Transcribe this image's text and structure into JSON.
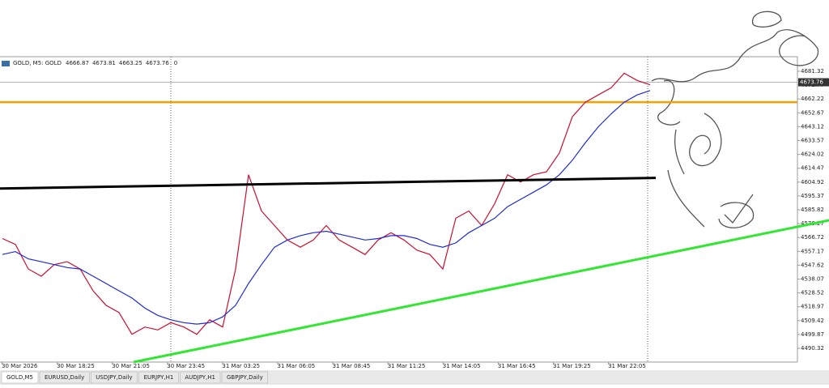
{
  "chart_data": {
    "type": "line",
    "header": {
      "label": "GOLD, M5:  GOLD",
      "ohlc": [
        4666.87,
        4673.81,
        4663.25,
        4673.76
      ],
      "spread": 0
    },
    "ylim": [
      4480.83,
      4691.37
    ],
    "yticks": [
      4681.32,
      4671.77,
      4662.22,
      4652.67,
      4643.12,
      4633.57,
      4624.02,
      4614.47,
      4604.92,
      4595.37,
      4585.82,
      4576.27,
      4566.72,
      4557.17,
      4547.62,
      4538.07,
      4528.52,
      4518.97,
      4509.42,
      4499.87,
      4490.32
    ],
    "xtick_labels": [
      "30 Mar 2026",
      "30 Mar 18:25",
      "30 Mar 21:05",
      "30 Mar 23:45",
      "31 Mar 03:25",
      "31 Mar 06:05",
      "31 Mar 08:45",
      "31 Mar 11:25",
      "31 Mar 14:05",
      "31 Mar 16:45",
      "31 Mar 19:25",
      "31 Mar 22:05"
    ],
    "series": [
      {
        "color": "#c8102e",
        "values": [
          4566,
          4562,
          4545,
          4540,
          4548,
          4550,
          4545,
          4530,
          4520,
          4515,
          4500,
          4505,
          4503,
          4508,
          4505,
          4500,
          4510,
          4505,
          4545,
          4610,
          4585,
          4575,
          4565,
          4560,
          4565,
          4575,
          4565,
          4560,
          4555,
          4565,
          4570,
          4565,
          4558,
          4555,
          4545,
          4580,
          4585,
          4575,
          4590,
          4610,
          4605,
          4610,
          4612,
          4625,
          4650,
          4660,
          4665,
          4670,
          4680,
          4675,
          4672
        ]
      },
      {
        "color": "#1f2bd6",
        "values": [
          4555,
          4557,
          4552,
          4550,
          4548,
          4546,
          4545,
          4540,
          4535,
          4530,
          4525,
          4518,
          4513,
          4510,
          4508,
          4507,
          4508,
          4512,
          4520,
          4535,
          4548,
          4560,
          4565,
          4568,
          4570,
          4571,
          4569,
          4567,
          4565,
          4566,
          4568,
          4568,
          4566,
          4562,
          4560,
          4563,
          4570,
          4575,
          4580,
          4588,
          4593,
          4598,
          4603,
          4610,
          4620,
          4632,
          4643,
          4652,
          4660,
          4665,
          4668
        ]
      }
    ],
    "current_price": 4673.76,
    "levels": [
      {
        "value": 4660,
        "color": "#f5a000"
      }
    ],
    "trendlines": [
      {
        "values": [
          4600.5,
          4607.8
        ],
        "color": "#000000"
      },
      {
        "values": [
          4480.83,
          4578.56
        ],
        "color": "#33e633"
      }
    ],
    "tabs": [
      "GOLD,M5",
      "EURUSD,Daily",
      "USDJPY,Daily",
      "EURJPY,H1",
      "AUDJPY,H1",
      "GBPJPY,Daily"
    ]
  }
}
